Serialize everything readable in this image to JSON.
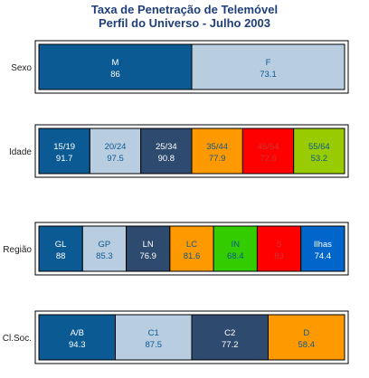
{
  "chart_data": {
    "type": "bar",
    "title": "Taxa de Penetração de Telemóvel",
    "subtitle": "Perfil do Universo - Julho 2003",
    "rows": [
      {
        "label": "Sexo",
        "segments": [
          {
            "name": "M",
            "value": "86",
            "color": "#0b5a93",
            "text": "#ffffff"
          },
          {
            "name": "F",
            "value": "73.1",
            "color": "#b9cde0",
            "text": "#0b5a93"
          }
        ]
      },
      {
        "label": "Idade",
        "segments": [
          {
            "name": "15/19",
            "value": "91.7",
            "color": "#0b5a93",
            "text": "#ffffff"
          },
          {
            "name": "20/24",
            "value": "97.5",
            "color": "#b9cde0",
            "text": "#0b5a93"
          },
          {
            "name": "25/34",
            "value": "90.8",
            "color": "#2e4a6e",
            "text": "#ffffff"
          },
          {
            "name": "35/44",
            "value": "77.9",
            "color": "#ff9900",
            "text": "#0b5a93"
          },
          {
            "name": "45/54",
            "value": "72.6",
            "color": "#ff0000",
            "text": "#cc3333"
          },
          {
            "name": "55/64",
            "value": "53.2",
            "color": "#99cc00",
            "text": "#0b5a93"
          }
        ]
      },
      {
        "label": "Região",
        "segments": [
          {
            "name": "GL",
            "value": "88",
            "color": "#0b5a93",
            "text": "#ffffff"
          },
          {
            "name": "GP",
            "value": "85.3",
            "color": "#b9cde0",
            "text": "#0b5a93"
          },
          {
            "name": "LN",
            "value": "76.9",
            "color": "#2e4a6e",
            "text": "#ffffff"
          },
          {
            "name": "LC",
            "value": "81.6",
            "color": "#ff9900",
            "text": "#0b5a93"
          },
          {
            "name": "IN",
            "value": "68.4",
            "color": "#33cc00",
            "text": "#0b5a93"
          },
          {
            "name": "S",
            "value": "83",
            "color": "#ff0000",
            "text": "#cc3333"
          },
          {
            "name": "Ilhas",
            "value": "74.4",
            "color": "#0066cc",
            "text": "#ffffff"
          }
        ]
      },
      {
        "label": "Cl.Soc.",
        "segments": [
          {
            "name": "A/B",
            "value": "94.3",
            "color": "#0b5a93",
            "text": "#ffffff"
          },
          {
            "name": "C1",
            "value": "87.5",
            "color": "#b9cde0",
            "text": "#0b5a93"
          },
          {
            "name": "C2",
            "value": "77.2",
            "color": "#2e4a6e",
            "text": "#ffffff"
          },
          {
            "name": "D",
            "value": "58.4",
            "color": "#ff9900",
            "text": "#0b5a93"
          }
        ]
      }
    ]
  }
}
